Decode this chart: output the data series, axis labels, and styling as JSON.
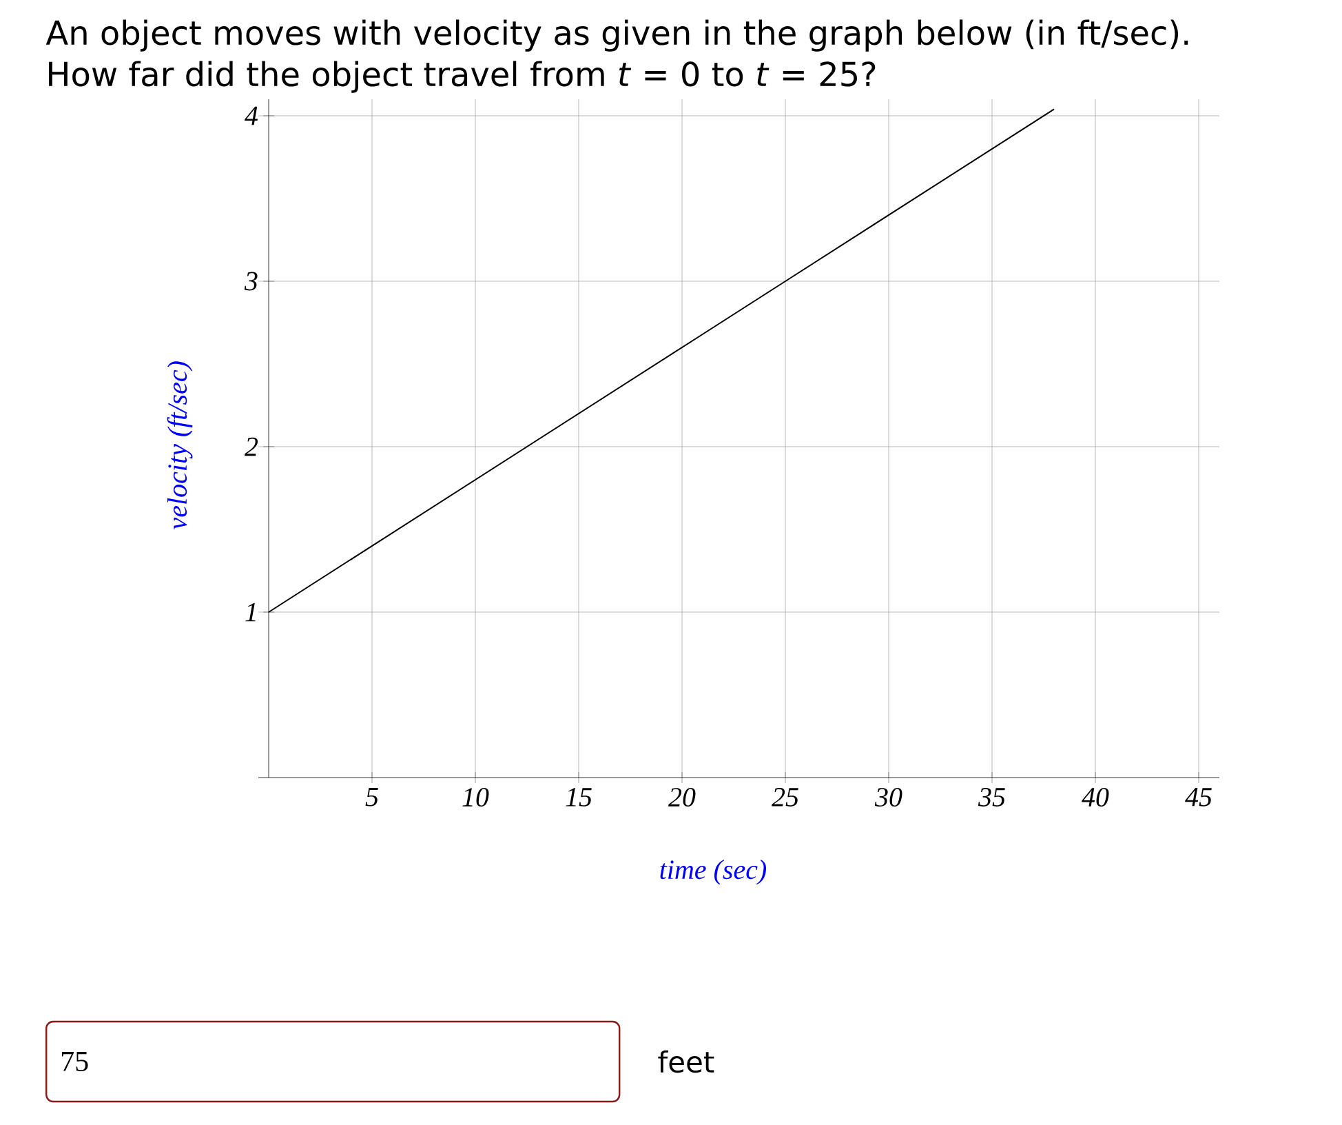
{
  "chart_data": {
    "type": "line",
    "title": "An object moves with velocity as given in the graph below (in ft/sec).",
    "subtitle": "How far did the object travel from *t* = 0 to *t* = 25?",
    "xlabel": "time (sec)",
    "ylabel": "velocity (ft/sec)",
    "x": [
      0,
      25,
      38
    ],
    "values": [
      1,
      3,
      4.04
    ],
    "color": "#000000",
    "xlim": [
      -0.5,
      46
    ],
    "ylim": [
      0,
      4.1
    ],
    "xticks": [
      5,
      10,
      15,
      20,
      25,
      30,
      35,
      40,
      45
    ],
    "yticks": [
      1,
      2,
      3,
      4
    ],
    "grid": true,
    "marker": "none",
    "line_style": "solid",
    "annotations": [
      "75",
      "feet"
    ]
  }
}
